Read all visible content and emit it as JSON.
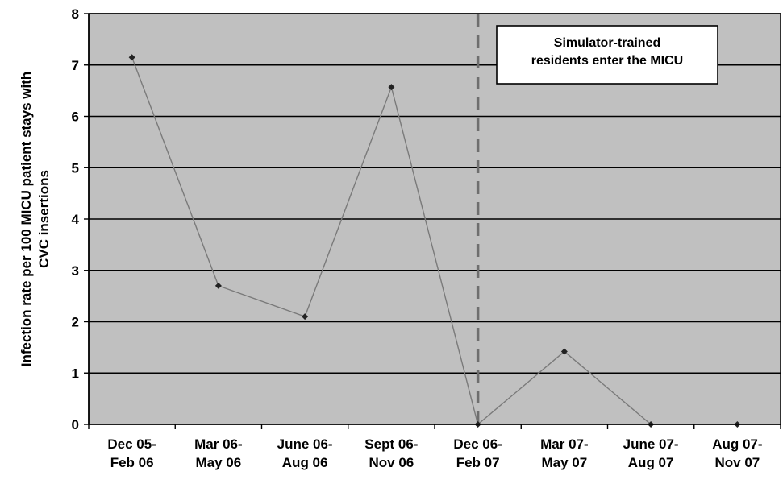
{
  "chart_data": {
    "type": "line",
    "ylabel_lines": [
      "Infection rate per 100 MICU patient stays with",
      "CVC insertions"
    ],
    "ylim": [
      0,
      8
    ],
    "yticks": [
      "0",
      "1",
      "2",
      "3",
      "4",
      "5",
      "6",
      "7",
      "8"
    ],
    "grid": true,
    "categories": [
      [
        "Dec 05-",
        "Feb 06"
      ],
      [
        "Mar 06-",
        "May 06"
      ],
      [
        "June 06-",
        "Aug 06"
      ],
      [
        "Sept 06-",
        "Nov 06"
      ],
      [
        "Dec 06-",
        "Feb 07"
      ],
      [
        "Mar 07-",
        "May 07"
      ],
      [
        "June 07-",
        "Aug 07"
      ],
      [
        "Aug 07-",
        "Nov 07"
      ]
    ],
    "series": [
      {
        "values": [
          7.15,
          2.7,
          2.1,
          6.57,
          0,
          1.42,
          0,
          0
        ],
        "connected_points": 7
      }
    ],
    "reference_line": {
      "at_category_index": 4
    },
    "annotation": {
      "lines": [
        "Simulator-trained",
        "residents enter the MICU"
      ]
    },
    "colors": {
      "plot_background": "#c0c0c0",
      "gridline": "#000000",
      "series_line": "#7a7a7a",
      "marker": "#222222",
      "reference_line": "#6e6e6e"
    }
  }
}
